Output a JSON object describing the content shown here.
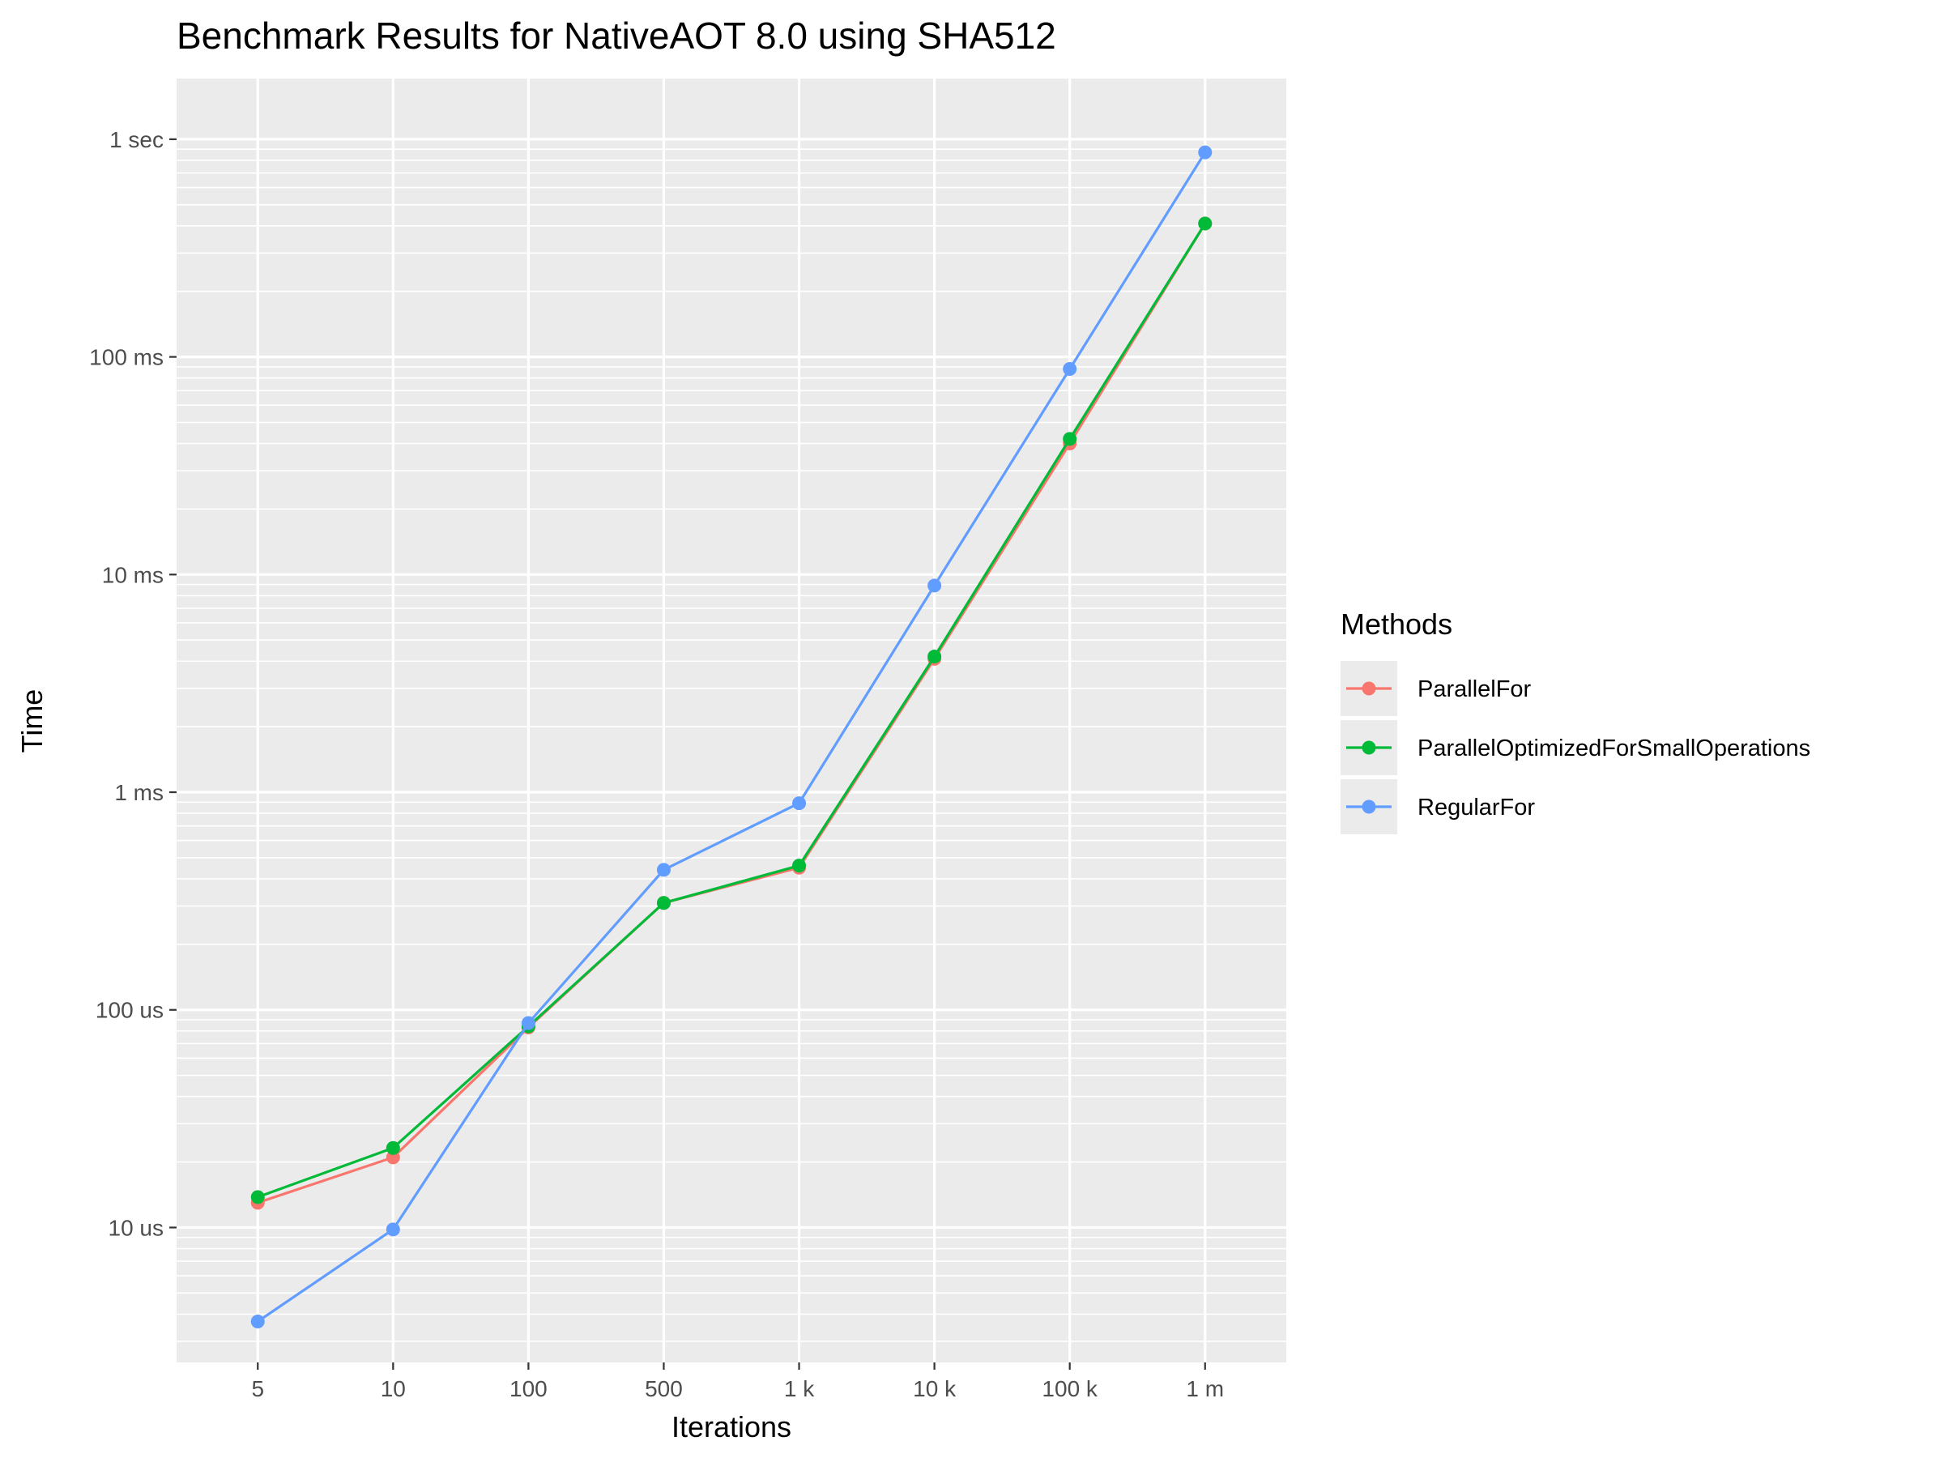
{
  "chart_data": {
    "type": "line",
    "title": "Benchmark Results for  NativeAOT 8.0  using SHA512",
    "xlabel": "Iterations",
    "ylabel": "Time",
    "x_scale": "categorical",
    "y_scale": "log10",
    "y_unit": "seconds",
    "categories": [
      "5",
      "10",
      "100",
      "500",
      "1 k",
      "10 k",
      "100 k",
      "1 m"
    ],
    "y_ticks": [
      {
        "value": 1e-05,
        "label": "10 us"
      },
      {
        "value": 0.0001,
        "label": "100 us"
      },
      {
        "value": 0.001,
        "label": "1 ms"
      },
      {
        "value": 0.01,
        "label": "10 ms"
      },
      {
        "value": 0.1,
        "label": "100 ms"
      },
      {
        "value": 1,
        "label": "1 sec"
      }
    ],
    "ylim": [
      2.4e-06,
      1.9
    ],
    "grid": true,
    "legend": {
      "title": "Methods",
      "position": "right"
    },
    "series": [
      {
        "name": "ParallelFor",
        "color": "#F8766D",
        "values": [
          1.3e-05,
          2.1e-05,
          8.3e-05,
          0.00031,
          0.00045,
          0.0041,
          0.04,
          0.41
        ]
      },
      {
        "name": "ParallelOptimizedForSmallOperations",
        "color": "#00BA38",
        "values": [
          1.38e-05,
          2.32e-05,
          8.4e-05,
          0.00031,
          0.00046,
          0.0042,
          0.042,
          0.41
        ]
      },
      {
        "name": "RegularFor",
        "color": "#619CFF",
        "values": [
          3.7e-06,
          9.8e-06,
          8.7e-05,
          0.00044,
          0.00089,
          0.0089,
          0.088,
          0.87
        ]
      }
    ]
  },
  "colors": {
    "panel_background": "#EBEBEB",
    "grid_major": "#FFFFFF",
    "tick_text": "#4D4D4D"
  }
}
